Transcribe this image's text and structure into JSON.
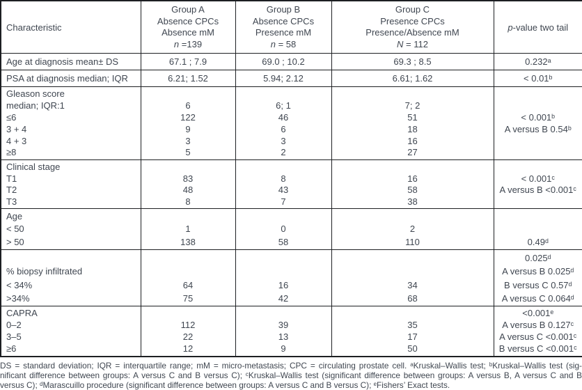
{
  "header": {
    "characteristic": "Characteristic",
    "groups": [
      {
        "lines": [
          "Group A",
          "Absence CPCs",
          "Absence mM"
        ],
        "n_italic": "n",
        "n_rest": " =139"
      },
      {
        "lines": [
          "Group B",
          "Absence CPCs",
          "Presence mM"
        ],
        "n_italic": "n",
        "n_rest": " = 58"
      },
      {
        "lines": [
          "Group C",
          "Presence CPCs",
          "Presence/Absence mM"
        ],
        "n_italic": "N",
        "n_rest": " = 112"
      }
    ],
    "pvalue": {
      "p_italic": "p",
      "rest": "-value two tail"
    }
  },
  "chart_data": {
    "type": "table",
    "title": "Clinical characteristics by CPC / micro-metastasis group",
    "columns": [
      "Characteristic",
      "Group A Absence CPCs Absence mM n=139",
      "Group B Absence CPCs Presence mM n=58",
      "Group C Presence CPCs Presence/Absence mM N=112",
      "p-value two tail"
    ],
    "note": "full cell values mirrored in table.blocks"
  },
  "table": {
    "blocks": [
      {
        "name": "age-at-diagnosis",
        "label": [
          "Age at diagnosis mean± DS"
        ],
        "a": [
          "67.1 ; 7.9"
        ],
        "b": [
          "69.0 ; 10.2"
        ],
        "c": [
          "69.3 ; 8.5"
        ],
        "p": [
          "0.232ᵃ"
        ]
      },
      {
        "name": "psa-at-diagnosis",
        "label": [
          "PSA at diagnosis median; IQR"
        ],
        "a": [
          "6.21; 1.52"
        ],
        "b": [
          "5.94; 2.12"
        ],
        "c": [
          "6.61; 1.62"
        ],
        "p": [
          "< 0.01ᵇ"
        ]
      },
      {
        "name": "gleason-score",
        "label": [
          "Gleason score",
          "median; IQR:1",
          "≤6",
          "3 + 4",
          "4 + 3",
          "≥8"
        ],
        "a": [
          "",
          "6",
          "122",
          "9",
          "3",
          "5"
        ],
        "b": [
          "",
          "6; 1",
          "46",
          "6",
          "3",
          "2"
        ],
        "c": [
          "",
          "7; 2",
          "51",
          "18",
          "16",
          "27"
        ],
        "p": [
          "",
          "",
          "< 0.001ᵇ",
          "A versus B 0.54ᵇ",
          "",
          ""
        ]
      },
      {
        "name": "clinical-stage",
        "label": [
          "Clinical stage",
          "T1",
          "T2",
          "T3"
        ],
        "a": [
          "",
          "83",
          "48",
          "8"
        ],
        "b": [
          "",
          "8",
          "43",
          "7"
        ],
        "c": [
          "",
          "16",
          "58",
          "38"
        ],
        "p": [
          "",
          "< 0.001ᶜ",
          "A versus B <0.001ᶜ",
          ""
        ]
      },
      {
        "name": "age",
        "label": [
          "Age",
          "< 50",
          "> 50"
        ],
        "a": [
          "",
          "1",
          "138"
        ],
        "b": [
          "",
          "0",
          "58"
        ],
        "c": [
          "",
          "2",
          "110"
        ],
        "p": [
          "",
          "",
          "0.49ᵈ"
        ]
      },
      {
        "name": "biopsy-infiltrated",
        "label": [
          "",
          "% biopsy infiltrated",
          "< 34%",
          ">34%"
        ],
        "a": [
          "",
          "",
          "64",
          "75"
        ],
        "b": [
          "",
          "",
          "16",
          "42"
        ],
        "c": [
          "",
          "",
          "34",
          "68"
        ],
        "p": [
          "0.025ᵈ",
          "A versus B 0.025ᵈ",
          "B versus C 0.57ᵈ",
          "A versus C 0.064ᵈ"
        ]
      },
      {
        "name": "capra",
        "label": [
          "CAPRA",
          "0–2",
          "3–5",
          "≥6"
        ],
        "a": [
          "",
          "112",
          "22",
          "12"
        ],
        "b": [
          "",
          "39",
          "13",
          "9"
        ],
        "c": [
          "",
          "35",
          "17",
          "50"
        ],
        "p": [
          "<0.001ᵉ",
          "A versus B 0.127ᶜ",
          "A versus C <0.001ᶜ",
          "B versus C <0.001ᶜ"
        ]
      }
    ]
  },
  "footnote": {
    "line1": "DS = standard deviation; IQR = interquartile range; mM = micro-metastasis; CPC = circulating prostate cell. ᵃKruskal–Wallis test; ᵇKruskal–Wallis test (sig-",
    "line2": "nificant difference between groups: A versus C and B versus C); ᶜKruskal–Wallis test (significant difference between groups: A versus B, A versus C and B",
    "line3": "versus C); ᵈMarascuillo procedure (significant difference between groups: A versus C and B versus C); ᵉFishers’ Exact tests."
  }
}
